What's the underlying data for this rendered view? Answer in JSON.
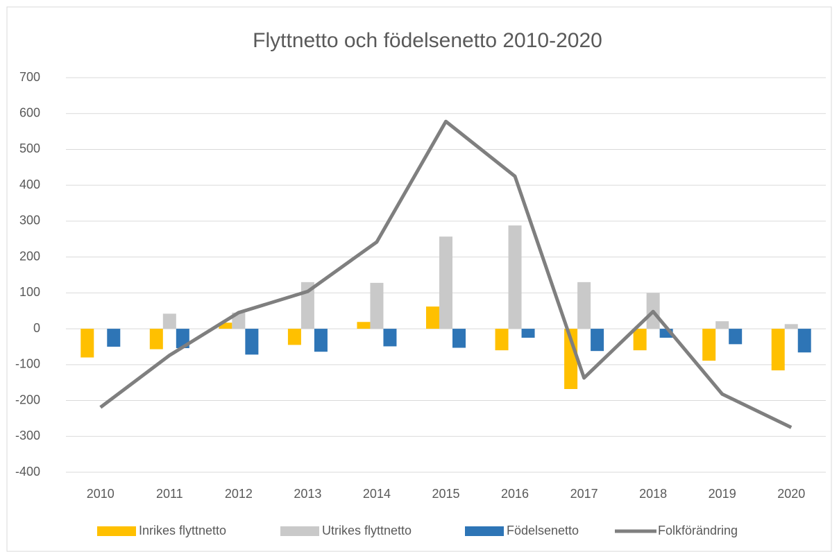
{
  "chart_data": {
    "type": "bar",
    "title": "Flyttnetto och födelsenetto 2010-2020",
    "categories": [
      "2010",
      "2011",
      "2012",
      "2013",
      "2014",
      "2015",
      "2016",
      "2017",
      "2018",
      "2019",
      "2020"
    ],
    "series": [
      {
        "name": "Inrikes flyttnetto",
        "color": "#ffc000",
        "values": [
          -80,
          -57,
          17,
          -45,
          19,
          62,
          -60,
          -168,
          -60,
          -89,
          -116
        ]
      },
      {
        "name": "Utrikes flyttnetto",
        "color": "#c9c9c9",
        "values": [
          0,
          42,
          45,
          130,
          128,
          257,
          288,
          130,
          100,
          21,
          13
        ]
      },
      {
        "name": "Födelsenetto",
        "color": "#2e75b6",
        "values": [
          -50,
          -54,
          -72,
          -64,
          -49,
          -53,
          -25,
          -62,
          -25,
          -43,
          -66
        ]
      },
      {
        "name": "Folkförändring",
        "type": "line",
        "color": "#7f7f7f",
        "values": [
          -219,
          -74,
          45,
          104,
          242,
          578,
          425,
          -137,
          48,
          -182,
          -275
        ]
      }
    ],
    "ylim": [
      -400,
      700
    ],
    "yticks": [
      -400,
      -300,
      -200,
      -100,
      0,
      100,
      200,
      300,
      400,
      500,
      600,
      700
    ],
    "grid": true,
    "legend": "bottom"
  }
}
